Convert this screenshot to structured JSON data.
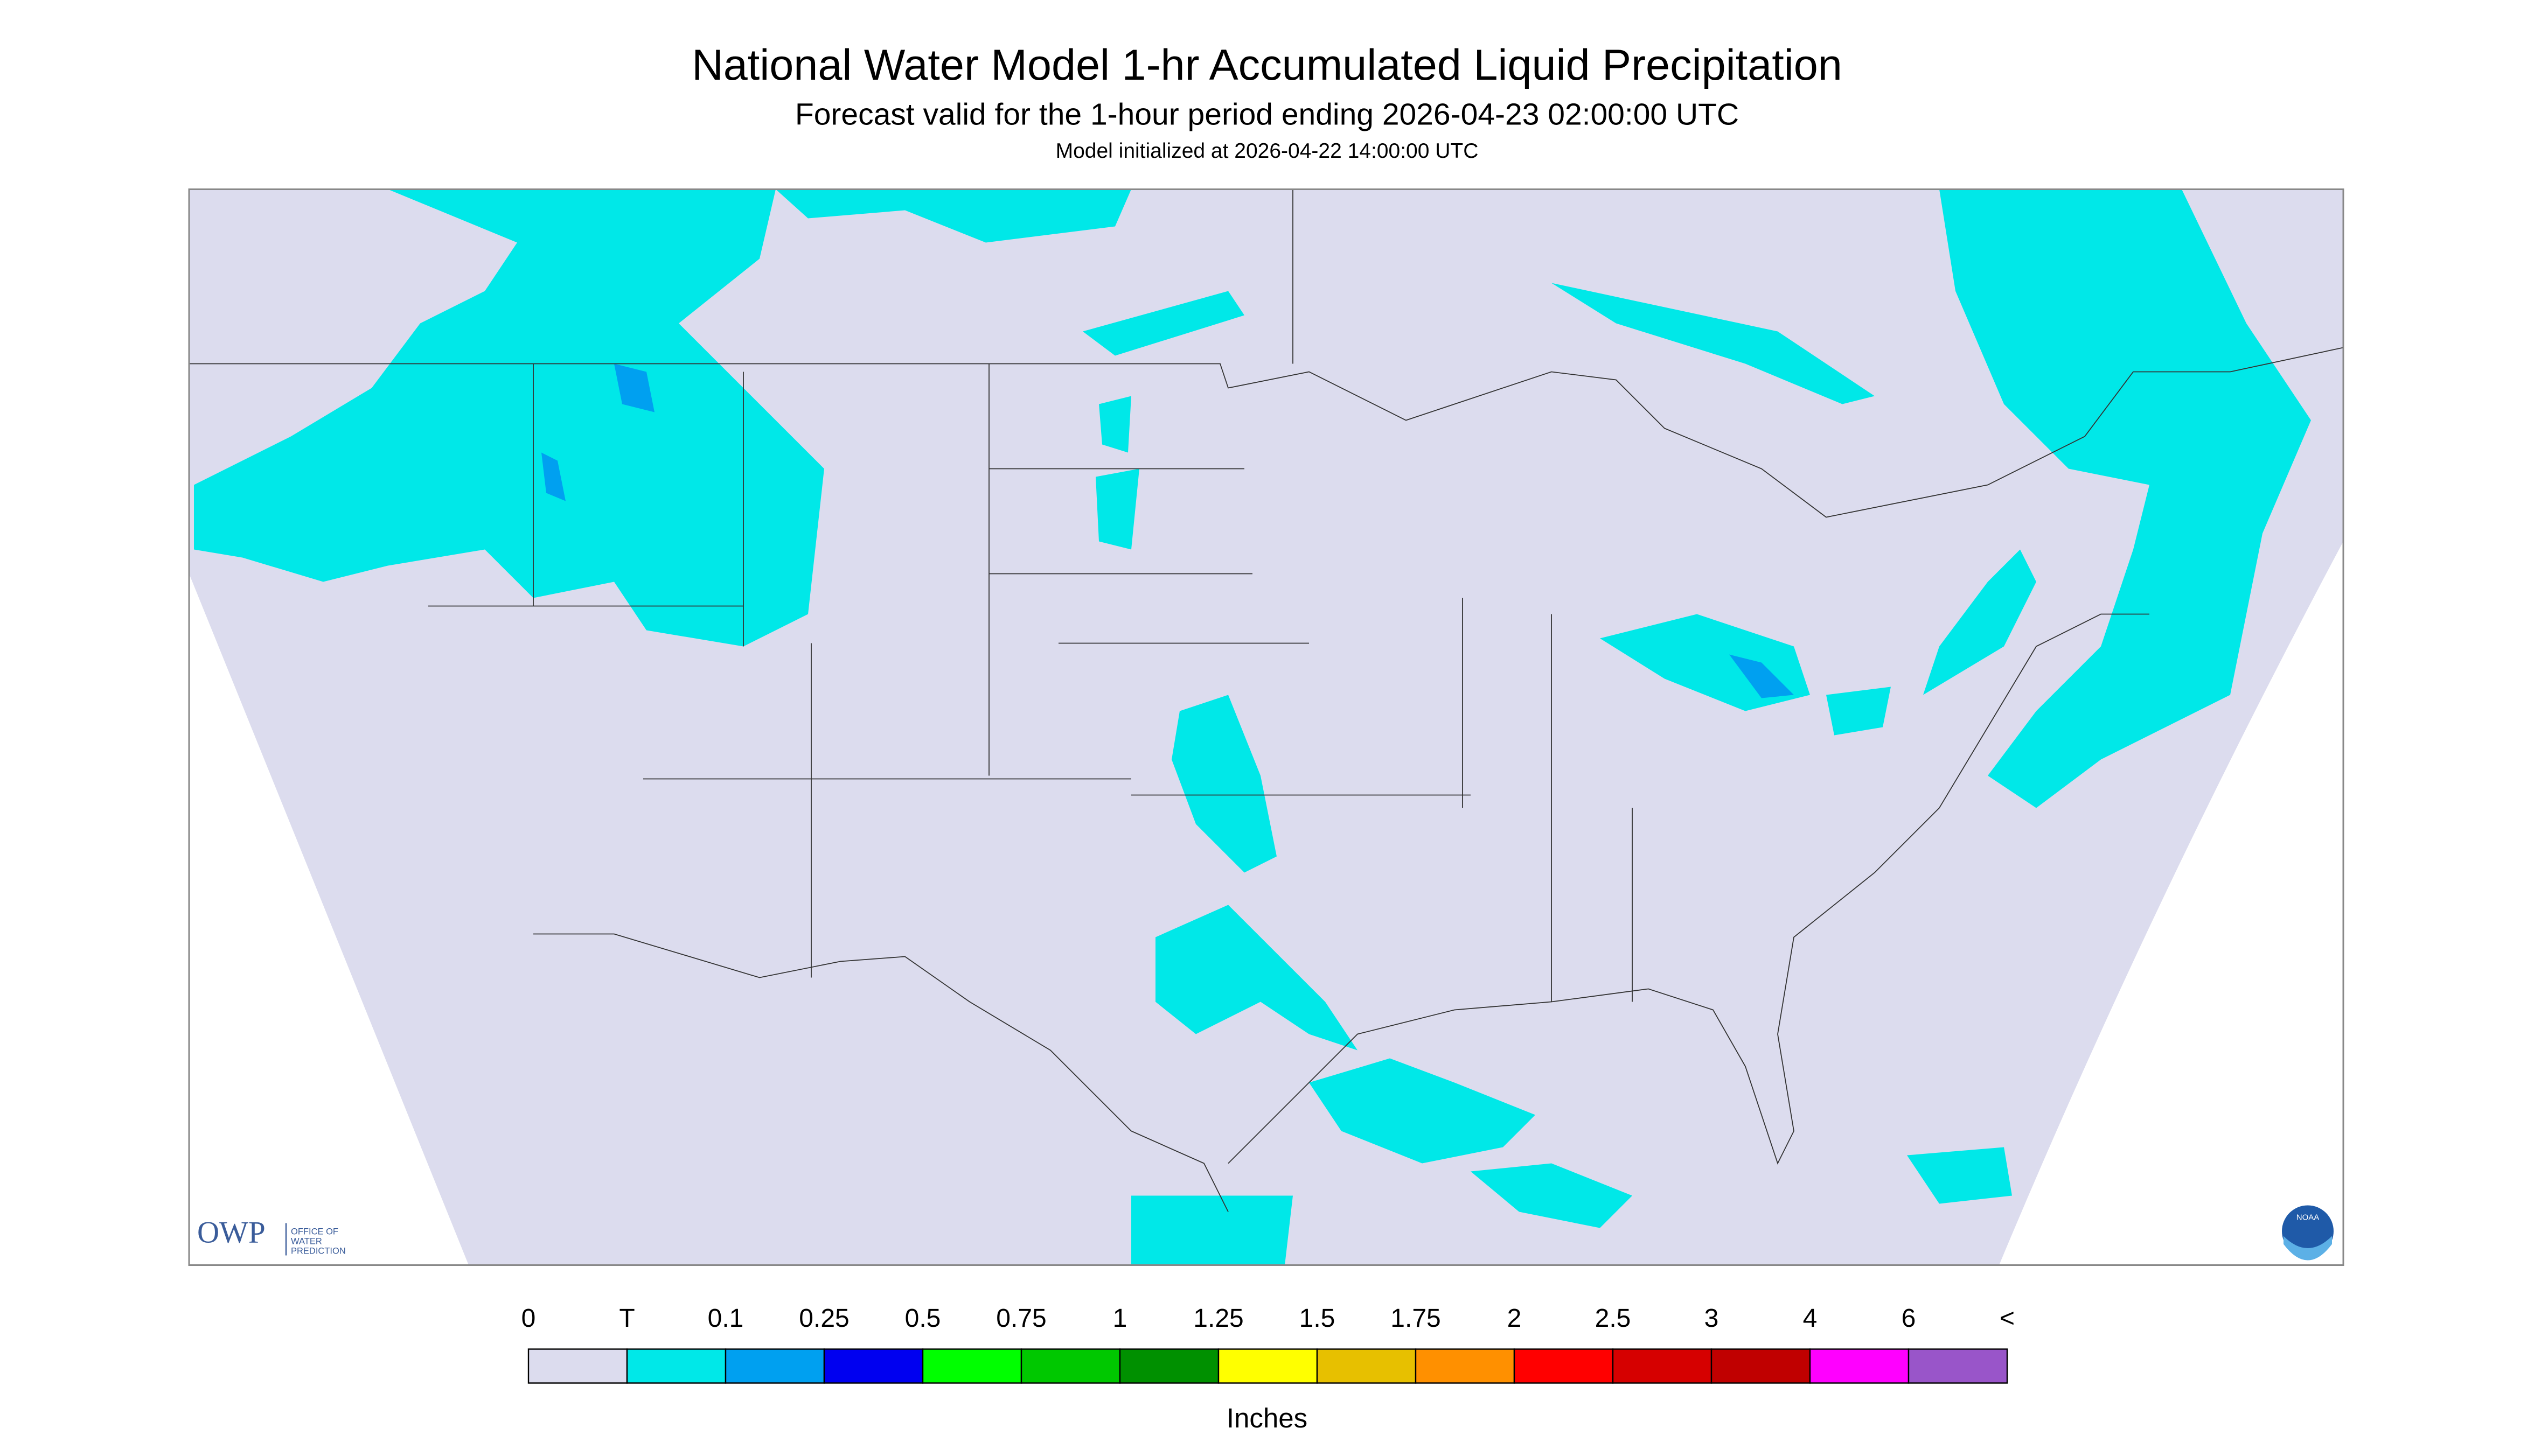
{
  "header": {
    "title": "National Water Model 1-hr Accumulated Liquid Precipitation",
    "subtitle": "Forecast valid for the 1-hour period ending 2026-04-23 02:00:00 UTC",
    "note": "Model initialized at 2026-04-22 14:00:00 UTC"
  },
  "logos": {
    "owp": "OWP",
    "owp_text": [
      "OFFICE OF",
      "WATER",
      "PREDICTION"
    ],
    "noaa": "NOAA"
  },
  "legend": {
    "labels": [
      "0",
      "T",
      "0.1",
      "0.25",
      "0.5",
      "0.75",
      "1",
      "1.25",
      "1.5",
      "1.75",
      "2",
      "2.5",
      "3",
      "4",
      "6",
      "<"
    ],
    "colors": [
      "#dcdcee",
      "#00e8e8",
      "#00a0f0",
      "#0000f0",
      "#00ff00",
      "#00c800",
      "#009000",
      "#ffff00",
      "#e7c000",
      "#ff9000",
      "#ff0000",
      "#d60000",
      "#c00000",
      "#ff00ff",
      "#9955c9"
    ],
    "unit": "Inches"
  }
}
